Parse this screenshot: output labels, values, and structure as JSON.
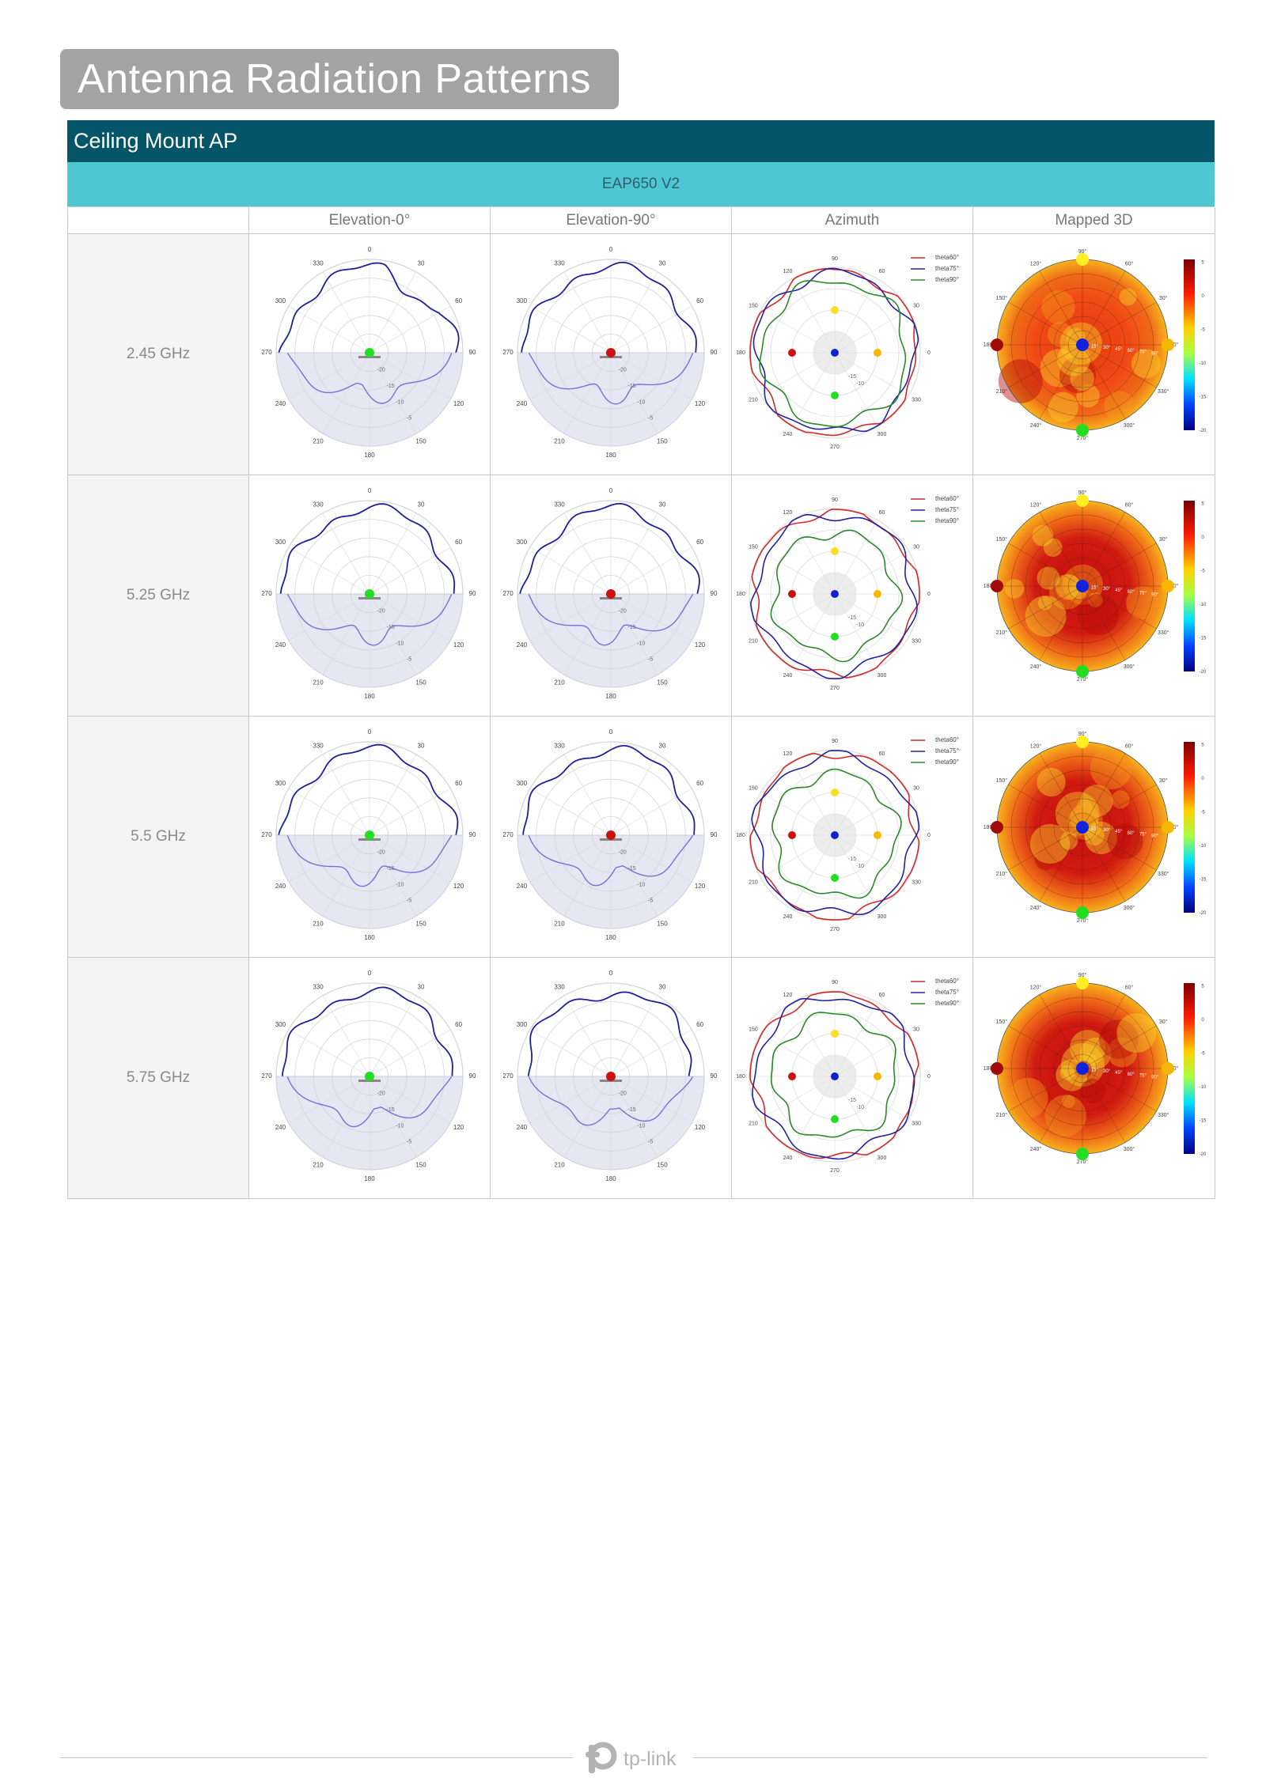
{
  "page": {
    "title": "Antenna Radiation Patterns",
    "section": "Ceiling Mount AP",
    "model": "EAP650 V2"
  },
  "columns": [
    "Elevation-0°",
    "Elevation-90°",
    "Azimuth",
    "Mapped 3D"
  ],
  "rows": [
    {
      "freq": "2.45 GHz"
    },
    {
      "freq": "5.25 GHz"
    },
    {
      "freq": "5.5 GHz"
    },
    {
      "freq": "5.75 GHz"
    }
  ],
  "elevation_labels": {
    "angles": [
      "0",
      "30",
      "60",
      "90",
      "120",
      "150",
      "180",
      "210",
      "240",
      "270",
      "300",
      "330"
    ],
    "rings": [
      "-20",
      "-15",
      "-10",
      "-5"
    ]
  },
  "azimuth_labels": {
    "angles": [
      "0",
      "30",
      "60",
      "90",
      "120",
      "150",
      "180",
      "210",
      "240",
      "270",
      "300",
      "330"
    ],
    "rings": [
      "-15",
      "-10"
    ],
    "legend": [
      "theta60°",
      "theta75°",
      "theta90°"
    ]
  },
  "mapped3d_labels": {
    "angles": [
      "0°",
      "30°",
      "60°",
      "90°",
      "120°",
      "150°",
      "180°",
      "210°",
      "240°",
      "270°",
      "300°",
      "330°"
    ],
    "theta": [
      "15°",
      "30°",
      "45°",
      "60°",
      "75°",
      "90°"
    ],
    "scale": [
      "5",
      "0",
      "-5",
      "-10",
      "-15",
      "-20"
    ]
  },
  "colors": {
    "title_bg": "#a3a3a3",
    "section_bg": "#045568",
    "model_bg": "#4ec7d2",
    "pattern_line": "#1f1f9e",
    "lower_pattern": "#6f74d6",
    "theta60": "#d22b2b",
    "theta75": "#23239e",
    "theta90": "#2b8a2b"
  },
  "footer": {
    "brand": "tp-link",
    "logo_icon": "tp-link-logo-icon"
  }
}
